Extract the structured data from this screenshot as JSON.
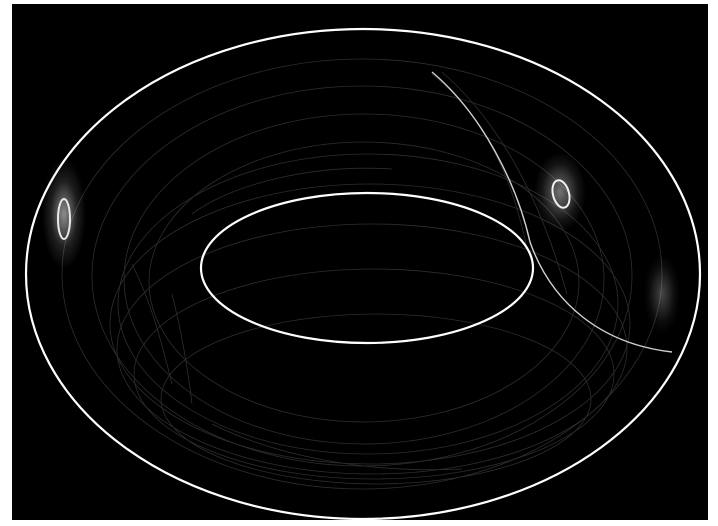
{
  "image": {
    "subject": "torus-edge-render",
    "colors": {
      "frame": "#ffffff",
      "background": "#000000",
      "edge": "#ffffff",
      "contour": "#3a3a3a",
      "contour_faint": "#222222"
    }
  }
}
